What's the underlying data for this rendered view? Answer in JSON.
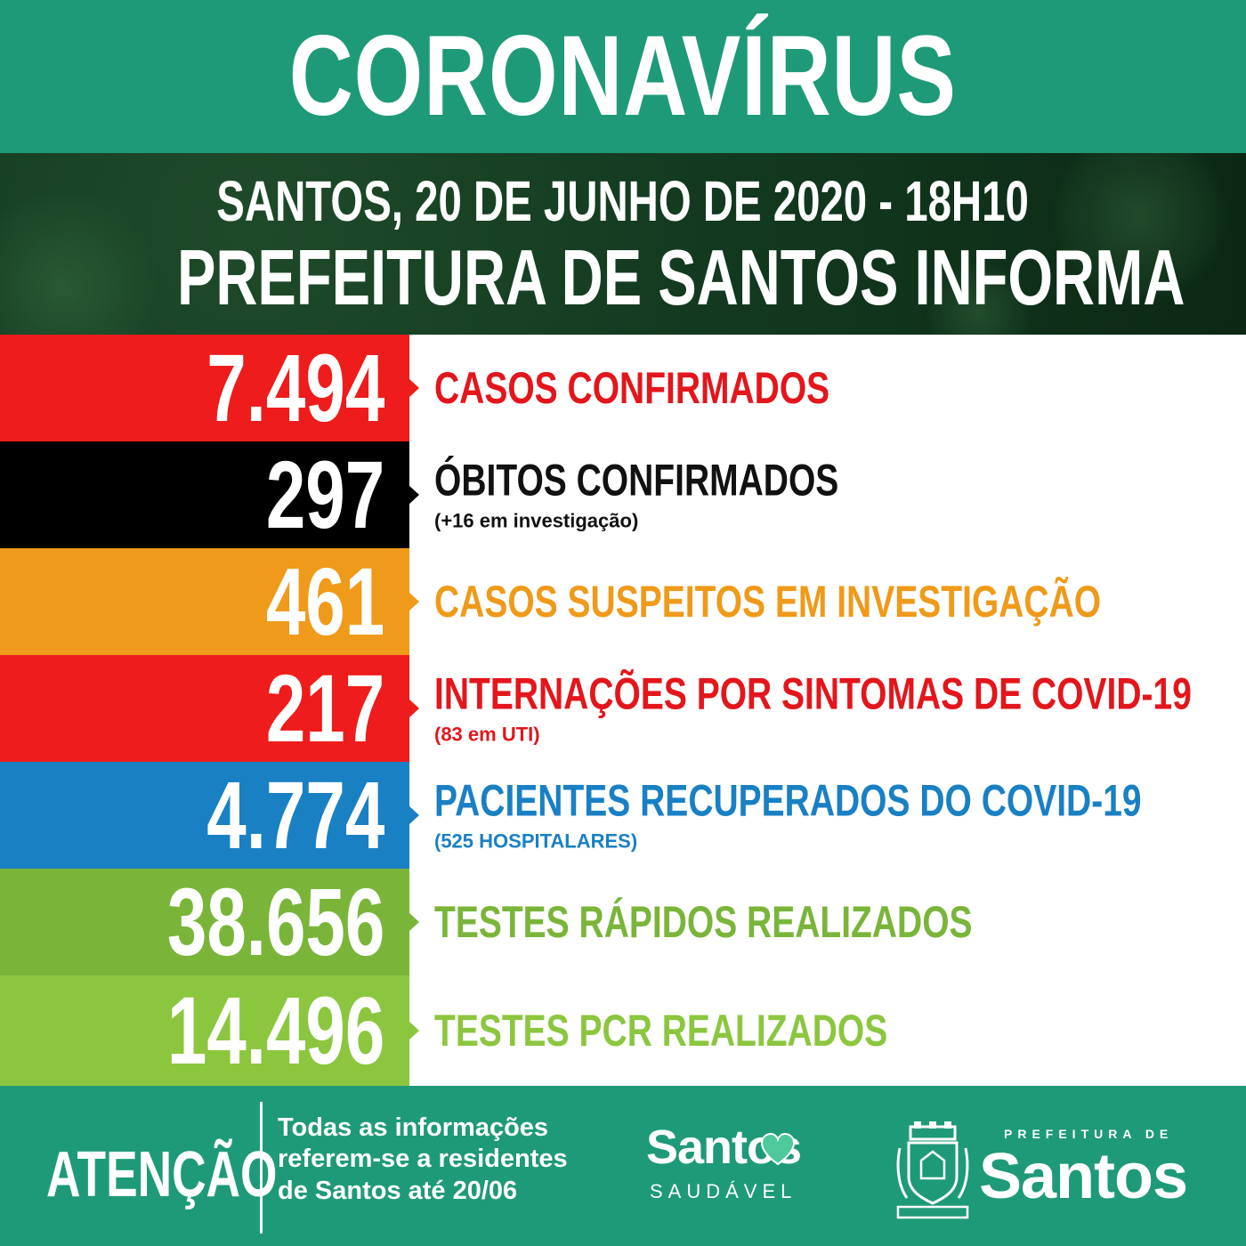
{
  "header": {
    "title": "CORONAVÍRUS",
    "date_line": "SANTOS, 20 DE JUNHO DE 2020 - 18H10",
    "subtitle": "PREFEITURA DE SANTOS INFORMA"
  },
  "stats": [
    {
      "value": "7.494",
      "label": "CASOS CONFIRMADOS",
      "note": "",
      "color": "#ee1c1c",
      "label_color": "#e3161c"
    },
    {
      "value": "297",
      "label": "ÓBITOS CONFIRMADOS",
      "note": "(+16 em investigação)",
      "color": "#000000",
      "label_color": "#111111"
    },
    {
      "value": "461",
      "label": "CASOS SUSPEITOS EM INVESTIGAÇÃO",
      "note": "",
      "color": "#ef9a1a",
      "label_color": "#ef9a1a"
    },
    {
      "value": "217",
      "label": "INTERNAÇÕES POR SINTOMAS DE COVID-19",
      "note": "(83 em UTI)",
      "color": "#ee1c1c",
      "label_color": "#e3161c"
    },
    {
      "value": "4.774",
      "label": "PACIENTES RECUPERADOS DO COVID-19",
      "note": "(525 HOSPITALARES)",
      "color": "#1a80c4",
      "label_color": "#1a80c4"
    },
    {
      "value": "38.656",
      "label": "TESTES RÁPIDOS REALIZADOS",
      "note": "",
      "color": "#7ab53a",
      "label_color": "#7ab53a"
    },
    {
      "value": "14.496",
      "label": "TESTES PCR REALIZADOS",
      "note": "",
      "color": "#8cc63f",
      "label_color": "#8cc63f"
    }
  ],
  "footer": {
    "atencao": "ATENÇÃO",
    "note_lines": [
      "Todas as informações",
      "referem-se a residentes",
      "de Santos até 20/06"
    ],
    "saudavel_brand": "Santos",
    "saudavel_sub": "SAUDÁVEL",
    "prefeitura_top": "PREFEITURA DE",
    "prefeitura_main": "Santos"
  },
  "colors": {
    "title_band": "#1f9a78",
    "header_band": "#133a20",
    "footer_band": "#1f9a78"
  },
  "icons": [
    "heart-icon",
    "crest-icon",
    "arrow-icon"
  ]
}
